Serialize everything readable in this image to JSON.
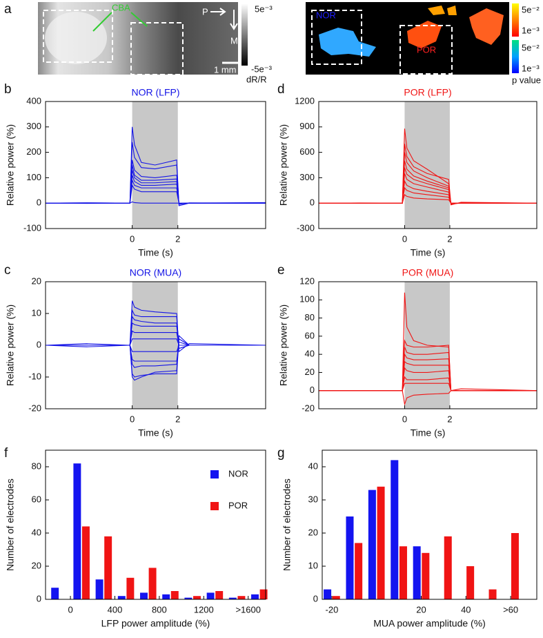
{
  "panel_a": {
    "label": "a",
    "annotation": "CBA",
    "orientation": [
      "P",
      "M"
    ],
    "scale_bar": "1 mm",
    "colorbar_left": {
      "max": "5e⁻³",
      "min": "-5e⁻³",
      "label": "dR/R"
    },
    "region_labels": [
      "NOR",
      "POR"
    ],
    "colorbar_right": {
      "ticks": [
        "5e⁻²",
        "1e⁻³",
        "5e⁻²",
        "1e⁻³"
      ],
      "label": "p value"
    }
  },
  "chart_data": [
    {
      "type": "line",
      "panel": "b",
      "title": "NOR (LFP)",
      "color": "#1414e6",
      "xlabel": "Time (s)",
      "ylabel": "Relative power (%)",
      "shade": [
        0,
        2
      ],
      "xlim": [
        -3.8,
        5.85
      ],
      "xticks": [
        0,
        2
      ],
      "ylim": [
        -100,
        400
      ],
      "yticks": [
        -100,
        0,
        100,
        200,
        300,
        400
      ],
      "x": [
        -3.8,
        -2,
        -0.1,
        0,
        0.1,
        0.4,
        1,
        1.95,
        2.05,
        2.5,
        5.85
      ],
      "series": [
        {
          "values": [
            0,
            1,
            0,
            300,
            230,
            160,
            150,
            170,
            -10,
            0,
            2
          ]
        },
        {
          "values": [
            0,
            -1,
            0,
            240,
            180,
            140,
            135,
            150,
            -5,
            1,
            0
          ]
        },
        {
          "values": [
            0,
            0,
            0,
            170,
            130,
            105,
            100,
            110,
            -3,
            0,
            0
          ]
        },
        {
          "values": [
            0,
            1,
            0,
            150,
            110,
            90,
            90,
            95,
            -3,
            0,
            1
          ]
        },
        {
          "values": [
            0,
            0,
            0,
            130,
            100,
            80,
            80,
            85,
            -2,
            0,
            0
          ]
        },
        {
          "values": [
            0,
            0,
            0,
            110,
            85,
            70,
            70,
            75,
            -2,
            0,
            0
          ]
        },
        {
          "values": [
            0,
            0,
            0,
            90,
            70,
            60,
            60,
            60,
            -1,
            0,
            0
          ]
        },
        {
          "values": [
            0,
            0,
            0,
            70,
            55,
            45,
            45,
            45,
            -1,
            0,
            0
          ]
        },
        {
          "values": [
            0,
            0,
            0,
            5,
            2,
            0,
            0,
            0,
            0,
            0,
            0
          ]
        }
      ]
    },
    {
      "type": "line",
      "panel": "d",
      "title": "POR (LFP)",
      "color": "#f01414",
      "xlabel": "Time (s)",
      "ylabel": "Relative power (%)",
      "shade": [
        0,
        2
      ],
      "xlim": [
        -3.8,
        5.85
      ],
      "xticks": [
        0,
        2
      ],
      "ylim": [
        -300,
        1200
      ],
      "yticks": [
        -300,
        0,
        300,
        600,
        900,
        1200
      ],
      "x": [
        -3.8,
        -2,
        -0.1,
        0,
        0.1,
        0.4,
        1,
        1.95,
        2.05,
        2.5,
        5.85
      ],
      "series": [
        {
          "values": [
            0,
            2,
            0,
            880,
            650,
            500,
            400,
            230,
            -20,
            10,
            0
          ]
        },
        {
          "values": [
            0,
            0,
            0,
            700,
            550,
            430,
            350,
            280,
            -10,
            5,
            0
          ]
        },
        {
          "values": [
            0,
            0,
            0,
            600,
            480,
            380,
            300,
            200,
            -10,
            0,
            0
          ]
        },
        {
          "values": [
            0,
            0,
            0,
            500,
            400,
            320,
            260,
            180,
            -5,
            0,
            0
          ]
        },
        {
          "values": [
            0,
            0,
            0,
            420,
            340,
            280,
            230,
            160,
            -5,
            0,
            0
          ]
        },
        {
          "values": [
            0,
            0,
            0,
            350,
            280,
            230,
            190,
            130,
            0,
            0,
            0
          ]
        },
        {
          "values": [
            0,
            0,
            0,
            260,
            210,
            170,
            140,
            100,
            0,
            0,
            0
          ]
        },
        {
          "values": [
            0,
            0,
            0,
            180,
            150,
            120,
            100,
            70,
            0,
            0,
            0
          ]
        },
        {
          "values": [
            0,
            0,
            0,
            100,
            80,
            60,
            50,
            40,
            0,
            0,
            0
          ]
        }
      ]
    },
    {
      "type": "line",
      "panel": "c",
      "title": "NOR (MUA)",
      "color": "#1414e6",
      "xlabel": "Time (s)",
      "ylabel": "Relative power (%)",
      "shade": [
        0,
        2
      ],
      "xlim": [
        -3.8,
        5.85
      ],
      "xticks": [
        0,
        2
      ],
      "ylim": [
        -20,
        20
      ],
      "yticks": [
        -20,
        -10,
        0,
        10,
        20
      ],
      "x": [
        -3.8,
        -2,
        -0.1,
        0,
        0.1,
        0.4,
        1,
        1.95,
        2.05,
        2.5,
        5.85
      ],
      "series": [
        {
          "values": [
            0,
            0.5,
            0,
            14,
            12,
            11,
            10.5,
            10,
            -2,
            0.5,
            0
          ]
        },
        {
          "values": [
            0,
            -0.5,
            0,
            11,
            9.5,
            9,
            9,
            9,
            -1,
            0,
            0
          ]
        },
        {
          "values": [
            0,
            0,
            0,
            9,
            8,
            7.5,
            7,
            7,
            -1,
            0,
            0
          ]
        },
        {
          "values": [
            0,
            0,
            0,
            7,
            6.5,
            6,
            6,
            6,
            0,
            0,
            0
          ]
        },
        {
          "values": [
            0,
            0,
            0,
            4.5,
            4,
            4,
            4,
            4,
            0,
            0,
            0
          ]
        },
        {
          "values": [
            0,
            0,
            0,
            2,
            2,
            2,
            2,
            2,
            0,
            0,
            0
          ]
        },
        {
          "values": [
            0,
            0,
            0,
            -2,
            -2,
            -2,
            -2,
            -2,
            0,
            0,
            0
          ]
        },
        {
          "values": [
            0,
            0,
            0,
            -4.5,
            -5,
            -5,
            -5,
            -5,
            1,
            0,
            0
          ]
        },
        {
          "values": [
            0,
            0,
            0,
            -6,
            -7,
            -6.5,
            -6.5,
            -6,
            2,
            0,
            0
          ]
        },
        {
          "values": [
            0,
            0,
            0,
            -9,
            -10,
            -9.5,
            -9,
            -9,
            2,
            0,
            0
          ]
        },
        {
          "values": [
            0,
            0,
            0,
            -10,
            -11,
            -10,
            -8.5,
            -8,
            3,
            0,
            0
          ]
        }
      ]
    },
    {
      "type": "line",
      "panel": "e",
      "title": "POR (MUA)",
      "color": "#f01414",
      "xlabel": "Time (s)",
      "ylabel": "Relative power (%)",
      "shade": [
        0,
        2
      ],
      "xlim": [
        -3.8,
        5.85
      ],
      "xticks": [
        0,
        2
      ],
      "ylim": [
        -20,
        120
      ],
      "yticks": [
        -20,
        0,
        20,
        40,
        60,
        80,
        100,
        120
      ],
      "x": [
        -3.8,
        -2,
        -0.1,
        0,
        0.1,
        0.4,
        1,
        1.95,
        2.05,
        2.5,
        5.85
      ],
      "series": [
        {
          "values": [
            0,
            0,
            0,
            108,
            70,
            55,
            50,
            48,
            0,
            2,
            0
          ]
        },
        {
          "values": [
            0,
            0,
            0,
            55,
            50,
            48,
            48,
            50,
            0,
            0,
            0
          ]
        },
        {
          "values": [
            0,
            0,
            0,
            48,
            42,
            40,
            40,
            42,
            0,
            0,
            0
          ]
        },
        {
          "values": [
            0,
            0,
            0,
            40,
            36,
            34,
            34,
            35,
            0,
            0,
            0
          ]
        },
        {
          "values": [
            0,
            0,
            0,
            32,
            30,
            28,
            28,
            28,
            0,
            0,
            0
          ]
        },
        {
          "values": [
            0,
            0,
            0,
            25,
            22,
            20,
            20,
            22,
            0,
            0,
            0
          ]
        },
        {
          "values": [
            0,
            0,
            0,
            15,
            12,
            12,
            12,
            14,
            0,
            0,
            0
          ]
        },
        {
          "values": [
            0,
            0,
            0,
            8,
            8,
            8,
            8,
            8,
            0,
            0,
            0
          ]
        },
        {
          "values": [
            0,
            0,
            0,
            -15,
            -8,
            -5,
            -4,
            -3,
            0,
            0,
            0
          ]
        }
      ]
    },
    {
      "type": "bar",
      "panel": "f",
      "xlabel": "LFP power amplitude (%)",
      "ylabel": "Number of electrodes",
      "legend": "upper right",
      "xlim": [
        -224,
        1757
      ],
      "xticks": [
        0,
        400,
        800,
        1200,
        {
          "value": 1600,
          "label": ">1600"
        }
      ],
      "ylim": [
        0,
        90
      ],
      "yticks": [
        0,
        20,
        40,
        60,
        80
      ],
      "x": [
        -100,
        100,
        300,
        500,
        700,
        900,
        1100,
        1300,
        1500,
        1700
      ],
      "series": [
        {
          "name": "NOR",
          "color": "#1414f0",
          "values": [
            7,
            82,
            12,
            2,
            4,
            3,
            1,
            4,
            1,
            3
          ]
        },
        {
          "name": "POR",
          "color": "#f01414",
          "values": [
            0,
            44,
            38,
            13,
            19,
            5,
            2,
            5,
            2,
            6
          ]
        }
      ]
    },
    {
      "type": "bar",
      "panel": "g",
      "xlabel": "MUA power amplitude (%)",
      "ylabel": "Number of electrodes",
      "xlim": [
        -24.3,
        71.7
      ],
      "xticks": [
        -20,
        20,
        40,
        {
          "value": 60,
          "label": ">60"
        }
      ],
      "ylim": [
        0,
        45
      ],
      "yticks": [
        0,
        10,
        20,
        30,
        40
      ],
      "x": [
        -20,
        -10,
        0,
        10,
        20,
        30,
        40,
        50,
        60
      ],
      "series": [
        {
          "color": "#1414f0",
          "values": [
            3,
            25,
            33,
            42,
            16,
            0,
            0,
            0,
            0
          ]
        },
        {
          "color": "#f01414",
          "values": [
            1,
            17,
            34,
            16,
            14,
            19,
            10,
            3,
            20
          ]
        }
      ]
    }
  ]
}
